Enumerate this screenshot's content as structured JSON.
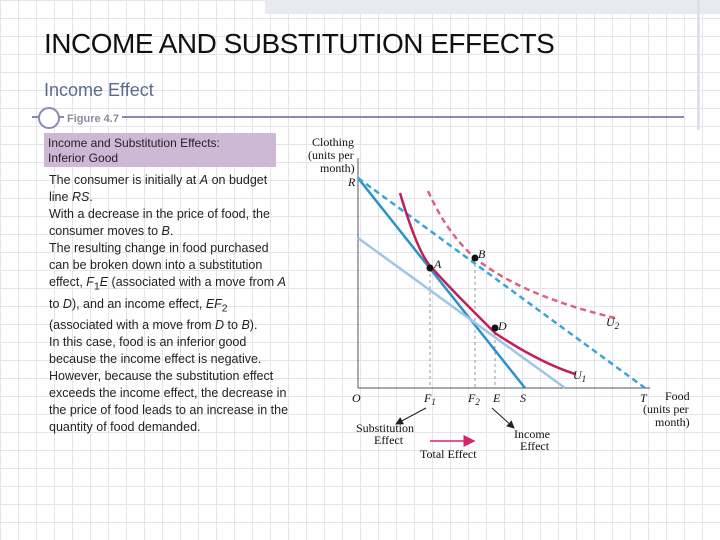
{
  "slide": {
    "title": "INCOME AND SUBSTITUTION EFFECTS",
    "subtitle": "Income Effect"
  },
  "figure": {
    "label": "Figure 4.7",
    "caption_line1": "Income and Substitution Effects:",
    "caption_line2": "Inferior Good"
  },
  "text": {
    "p1_a": "The consumer is initially at ",
    "p1_b": "A",
    "p1_c": " on budget line ",
    "p1_d": "RS",
    "p1_e": ".",
    "p2_a": "With a decrease in the price of food, the consumer moves to ",
    "p2_b": "B",
    "p2_c": ".",
    "p3_a": "The resulting change in food purchased can be broken down into a substitution effect, ",
    "p3_b": "F",
    "p3_sub1": "1",
    "p3_c": "E",
    "p3_d": " (associated with a move from ",
    "p3_e": "A",
    "p3_f": " to ",
    "p3_g": "D",
    "p3_h": "), and an income effect, ",
    "p3_i": "EF",
    "p3_sub2": "2",
    "p3_j": " (associated with a move from ",
    "p3_k": "D",
    "p3_l": " to ",
    "p3_m": "B",
    "p3_n": ").",
    "p4": "In this case, food is an inferior good because the income effect is negative.",
    "p5": "However, because the substitution effect exceeds the income effect, the decrease in the price of food leads to an increase in the quantity of food demanded."
  },
  "diagram": {
    "y_title_1": "Clothing",
    "y_title_2": "(units per",
    "y_title_3": "month)",
    "x_title_1": "Food",
    "x_title_2": "(units per",
    "x_title_3": "month)",
    "labels": {
      "R": "R",
      "A": "A",
      "B": "B",
      "D": "D",
      "U": "U",
      "sub1": "1",
      "sub2": "2",
      "O": "O",
      "F": "F",
      "E": "E",
      "S": "S",
      "T": "T"
    },
    "effects": {
      "substitution_1": "Substitution",
      "substitution_2": "Effect",
      "income_1": "Income",
      "income_2": "Effect",
      "total": "Total Effect"
    },
    "colors": {
      "budget_rs": "#2a93c9",
      "budget_rt": "#39a6d6",
      "budget_parallel": "#9ec7e6",
      "u1": "#c11f57",
      "u2": "#e0607f",
      "total_effect_arrow": "#d6236a",
      "caption_bg": "#cdb8d6"
    }
  }
}
